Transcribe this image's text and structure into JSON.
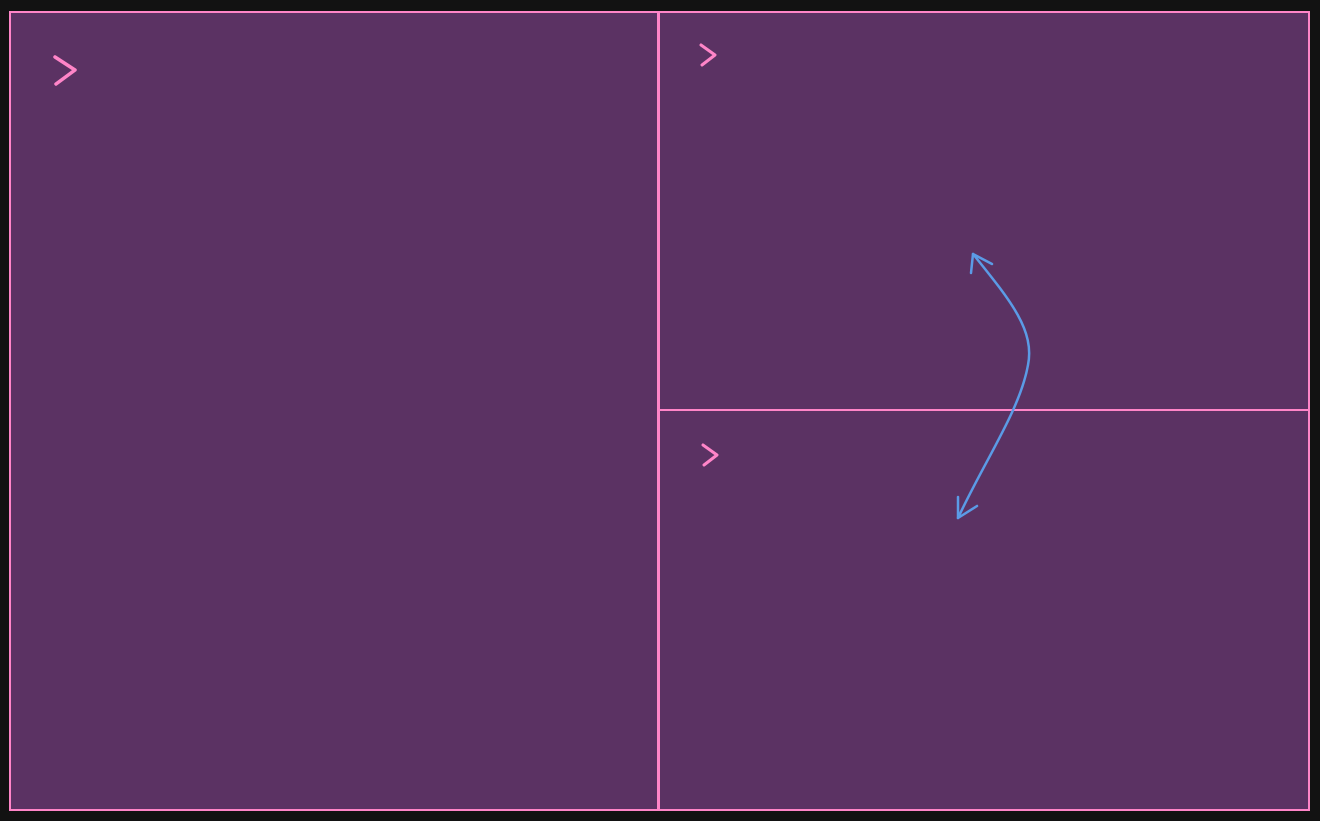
{
  "colors": {
    "background": "#121212",
    "pane_fill": "#5b3263",
    "border": "#ff85c8",
    "arrow": "#5b9be6"
  },
  "panes": [
    {
      "id": "left",
      "prompt_icon": "chevron-right-icon"
    },
    {
      "id": "top-right",
      "prompt_icon": "chevron-right-icon"
    },
    {
      "id": "bottom-right",
      "prompt_icon": "chevron-right-icon"
    }
  ],
  "connector": {
    "icon": "double-headed-curved-arrow",
    "relates": [
      "top-right",
      "bottom-right"
    ]
  }
}
